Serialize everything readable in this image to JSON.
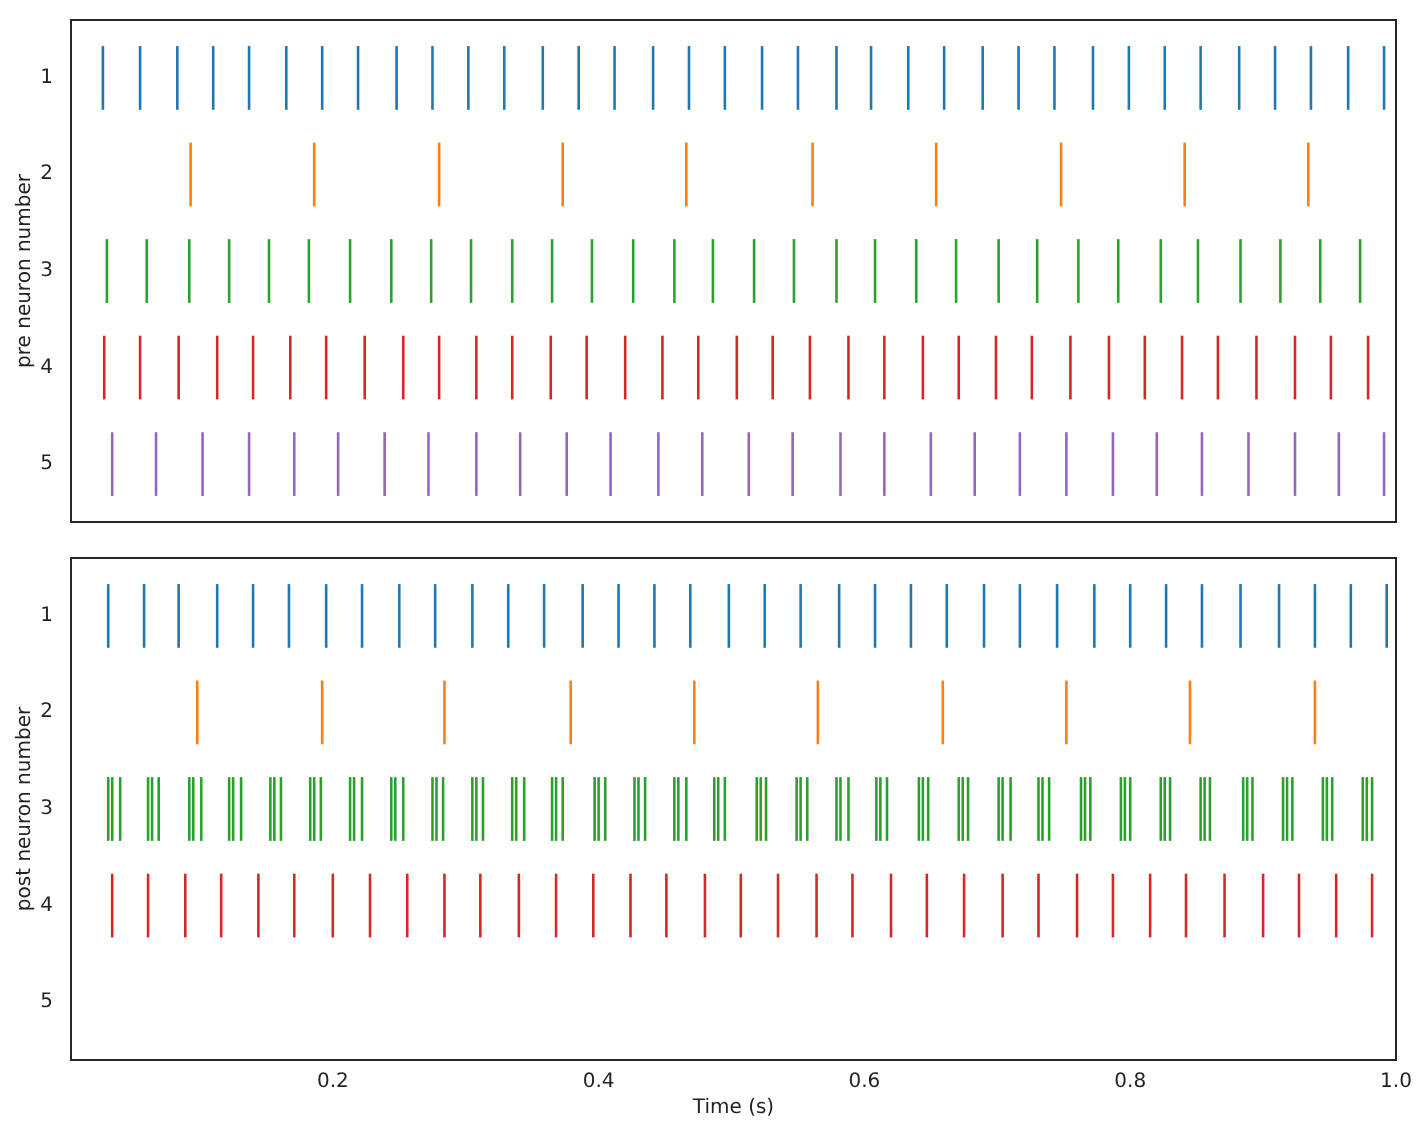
{
  "chart_data": [
    {
      "type": "bar",
      "ylabel": "pre neuron number",
      "xlim": [
        0.003,
        1.0
      ],
      "ylim": [
        5.6,
        0.4
      ],
      "yticks": [
        1,
        2,
        3,
        4,
        5
      ],
      "tick_labels": "y",
      "series": [
        {
          "color": "#1f77b4",
          "x": [
            0.027,
            0.055,
            0.083,
            0.11,
            0.137,
            0.165,
            0.192,
            0.219,
            0.248,
            0.275,
            0.302,
            0.329,
            0.358,
            0.385,
            0.412,
            0.441,
            0.468,
            0.495,
            0.523,
            0.55,
            0.579,
            0.605,
            0.633,
            0.66,
            0.689,
            0.716,
            0.743,
            0.772,
            0.799,
            0.826,
            0.853,
            0.882,
            0.909,
            0.936,
            0.964,
            0.991
          ],
          "base": [
            0.67,
            0.67,
            0.67,
            0.67,
            0.67,
            0.67,
            0.67,
            0.67,
            0.67,
            0.67,
            0.67,
            0.67,
            0.67,
            0.67,
            0.67,
            0.67,
            0.67,
            0.67,
            0.67,
            0.67,
            0.67,
            0.67,
            0.67,
            0.67,
            0.67,
            0.67,
            0.67,
            0.67,
            0.67,
            0.67,
            0.67,
            0.67,
            0.67,
            0.67,
            0.67,
            0.67
          ],
          "values": [
            0.66,
            0.66,
            0.66,
            0.66,
            0.66,
            0.66,
            0.66,
            0.66,
            0.66,
            0.66,
            0.66,
            0.66,
            0.66,
            0.66,
            0.66,
            0.66,
            0.66,
            0.66,
            0.66,
            0.66,
            0.66,
            0.66,
            0.66,
            0.66,
            0.66,
            0.66,
            0.66,
            0.66,
            0.66,
            0.66,
            0.66,
            0.66,
            0.66,
            0.66,
            0.66,
            0.66
          ]
        },
        {
          "color": "#ff7f0e",
          "x": [
            0.093,
            0.186,
            0.28,
            0.373,
            0.466,
            0.561,
            0.654,
            0.748,
            0.841,
            0.934
          ],
          "base": [
            1.67,
            1.67,
            1.67,
            1.67,
            1.67,
            1.67,
            1.67,
            1.67,
            1.67,
            1.67
          ],
          "values": [
            0.66,
            0.66,
            0.66,
            0.66,
            0.66,
            0.66,
            0.66,
            0.66,
            0.66,
            0.66
          ]
        },
        {
          "color": "#2ca02c",
          "x": [
            0.03,
            0.06,
            0.092,
            0.122,
            0.152,
            0.182,
            0.213,
            0.244,
            0.274,
            0.304,
            0.335,
            0.365,
            0.395,
            0.426,
            0.457,
            0.486,
            0.517,
            0.547,
            0.579,
            0.608,
            0.639,
            0.669,
            0.701,
            0.73,
            0.761,
            0.791,
            0.823,
            0.851,
            0.883,
            0.913,
            0.943,
            0.973
          ],
          "base": [
            2.67,
            2.67,
            2.67,
            2.67,
            2.67,
            2.67,
            2.67,
            2.67,
            2.67,
            2.67,
            2.67,
            2.67,
            2.67,
            2.67,
            2.67,
            2.67,
            2.67,
            2.67,
            2.67,
            2.67,
            2.67,
            2.67,
            2.67,
            2.67,
            2.67,
            2.67,
            2.67,
            2.67,
            2.67,
            2.67,
            2.67,
            2.67
          ],
          "values": [
            0.66,
            0.66,
            0.66,
            0.66,
            0.66,
            0.66,
            0.66,
            0.66,
            0.66,
            0.66,
            0.66,
            0.66,
            0.66,
            0.66,
            0.66,
            0.66,
            0.66,
            0.66,
            0.66,
            0.66,
            0.66,
            0.66,
            0.66,
            0.66,
            0.66,
            0.66,
            0.66,
            0.66,
            0.66,
            0.66,
            0.66,
            0.66
          ]
        },
        {
          "color": "#d62728",
          "x": [
            0.028,
            0.055,
            0.084,
            0.113,
            0.14,
            0.168,
            0.195,
            0.224,
            0.253,
            0.28,
            0.308,
            0.335,
            0.364,
            0.391,
            0.42,
            0.448,
            0.475,
            0.504,
            0.531,
            0.559,
            0.588,
            0.615,
            0.644,
            0.671,
            0.699,
            0.726,
            0.755,
            0.784,
            0.811,
            0.839,
            0.866,
            0.895,
            0.924,
            0.951,
            0.979
          ],
          "base": [
            3.67,
            3.67,
            3.67,
            3.67,
            3.67,
            3.67,
            3.67,
            3.67,
            3.67,
            3.67,
            3.67,
            3.67,
            3.67,
            3.67,
            3.67,
            3.67,
            3.67,
            3.67,
            3.67,
            3.67,
            3.67,
            3.67,
            3.67,
            3.67,
            3.67,
            3.67,
            3.67,
            3.67,
            3.67,
            3.67,
            3.67,
            3.67,
            3.67,
            3.67,
            3.67
          ],
          "values": [
            0.66,
            0.66,
            0.66,
            0.66,
            0.66,
            0.66,
            0.66,
            0.66,
            0.66,
            0.66,
            0.66,
            0.66,
            0.66,
            0.66,
            0.66,
            0.66,
            0.66,
            0.66,
            0.66,
            0.66,
            0.66,
            0.66,
            0.66,
            0.66,
            0.66,
            0.66,
            0.66,
            0.66,
            0.66,
            0.66,
            0.66,
            0.66,
            0.66,
            0.66,
            0.66
          ]
        },
        {
          "color": "#9467bd",
          "x": [
            0.034,
            0.067,
            0.102,
            0.137,
            0.171,
            0.204,
            0.239,
            0.272,
            0.308,
            0.341,
            0.376,
            0.409,
            0.445,
            0.478,
            0.513,
            0.546,
            0.582,
            0.615,
            0.65,
            0.683,
            0.717,
            0.752,
            0.787,
            0.82,
            0.854,
            0.889,
            0.924,
            0.957,
            0.991
          ],
          "base": [
            4.67,
            4.67,
            4.67,
            4.67,
            4.67,
            4.67,
            4.67,
            4.67,
            4.67,
            4.67,
            4.67,
            4.67,
            4.67,
            4.67,
            4.67,
            4.67,
            4.67,
            4.67,
            4.67,
            4.67,
            4.67,
            4.67,
            4.67,
            4.67,
            4.67,
            4.67,
            4.67,
            4.67,
            4.67
          ],
          "values": [
            0.66,
            0.66,
            0.66,
            0.66,
            0.66,
            0.66,
            0.66,
            0.66,
            0.66,
            0.66,
            0.66,
            0.66,
            0.66,
            0.66,
            0.66,
            0.66,
            0.66,
            0.66,
            0.66,
            0.66,
            0.66,
            0.66,
            0.66,
            0.66,
            0.66,
            0.66,
            0.66,
            0.66,
            0.66
          ]
        }
      ]
    },
    {
      "type": "bar",
      "xlabel": "Time (s)",
      "ylabel": "post neuron number",
      "xlim": [
        0.003,
        1.0
      ],
      "xticks": [
        0.2,
        0.4,
        0.6,
        0.8,
        {
          "value": 1,
          "label": "1.0"
        }
      ],
      "ylim": [
        5.6,
        0.4
      ],
      "yticks": [
        1,
        2,
        3,
        4,
        5
      ],
      "series": [
        {
          "color": "#1f77b4",
          "x": [
            0.031,
            0.058,
            0.084,
            0.113,
            0.14,
            0.167,
            0.195,
            0.222,
            0.25,
            0.277,
            0.305,
            0.332,
            0.359,
            0.388,
            0.415,
            0.442,
            0.469,
            0.498,
            0.525,
            0.552,
            0.581,
            0.608,
            0.635,
            0.662,
            0.69,
            0.717,
            0.745,
            0.773,
            0.8,
            0.827,
            0.854,
            0.883,
            0.912,
            0.939,
            0.966,
            0.993
          ],
          "base": [
            0.67,
            0.67,
            0.67,
            0.67,
            0.67,
            0.67,
            0.67,
            0.67,
            0.67,
            0.67,
            0.67,
            0.67,
            0.67,
            0.67,
            0.67,
            0.67,
            0.67,
            0.67,
            0.67,
            0.67,
            0.67,
            0.67,
            0.67,
            0.67,
            0.67,
            0.67,
            0.67,
            0.67,
            0.67,
            0.67,
            0.67,
            0.67,
            0.67,
            0.67,
            0.67,
            0.67
          ],
          "values": [
            0.66,
            0.66,
            0.66,
            0.66,
            0.66,
            0.66,
            0.66,
            0.66,
            0.66,
            0.66,
            0.66,
            0.66,
            0.66,
            0.66,
            0.66,
            0.66,
            0.66,
            0.66,
            0.66,
            0.66,
            0.66,
            0.66,
            0.66,
            0.66,
            0.66,
            0.66,
            0.66,
            0.66,
            0.66,
            0.66,
            0.66,
            0.66,
            0.66,
            0.66,
            0.66,
            0.66
          ]
        },
        {
          "color": "#ff7f0e",
          "x": [
            0.098,
            0.192,
            0.284,
            0.379,
            0.472,
            0.565,
            0.659,
            0.752,
            0.845,
            0.939
          ],
          "base": [
            1.67,
            1.67,
            1.67,
            1.67,
            1.67,
            1.67,
            1.67,
            1.67,
            1.67,
            1.67
          ],
          "values": [
            0.66,
            0.66,
            0.66,
            0.66,
            0.66,
            0.66,
            0.66,
            0.66,
            0.66,
            0.66
          ]
        },
        {
          "color": "#2ca02c",
          "x": [
            0.031,
            0.034,
            0.04,
            0.061,
            0.064,
            0.069,
            0.092,
            0.095,
            0.101,
            0.122,
            0.125,
            0.131,
            0.153,
            0.156,
            0.161,
            0.183,
            0.186,
            0.191,
            0.213,
            0.216,
            0.222,
            0.244,
            0.247,
            0.253,
            0.275,
            0.278,
            0.283,
            0.305,
            0.308,
            0.313,
            0.335,
            0.338,
            0.344,
            0.365,
            0.368,
            0.373,
            0.397,
            0.4,
            0.405,
            0.427,
            0.43,
            0.435,
            0.457,
            0.46,
            0.466,
            0.487,
            0.49,
            0.495,
            0.519,
            0.522,
            0.526,
            0.549,
            0.552,
            0.557,
            0.579,
            0.582,
            0.588,
            0.609,
            0.612,
            0.617,
            0.641,
            0.644,
            0.648,
            0.671,
            0.674,
            0.678,
            0.701,
            0.704,
            0.71,
            0.731,
            0.734,
            0.739,
            0.763,
            0.766,
            0.77,
            0.793,
            0.796,
            0.8,
            0.823,
            0.826,
            0.83,
            0.853,
            0.856,
            0.86,
            0.885,
            0.888,
            0.892,
            0.915,
            0.918,
            0.922,
            0.945,
            0.948,
            0.952,
            0.975,
            0.978,
            0.982
          ],
          "base": [
            2.67,
            2.67,
            2.67,
            2.67,
            2.67,
            2.67,
            2.67,
            2.67,
            2.67,
            2.67,
            2.67,
            2.67,
            2.67,
            2.67,
            2.67,
            2.67,
            2.67,
            2.67,
            2.67,
            2.67,
            2.67,
            2.67,
            2.67,
            2.67,
            2.67,
            2.67,
            2.67,
            2.67,
            2.67,
            2.67,
            2.67,
            2.67,
            2.67,
            2.67,
            2.67,
            2.67,
            2.67,
            2.67,
            2.67,
            2.67,
            2.67,
            2.67,
            2.67,
            2.67,
            2.67,
            2.67,
            2.67,
            2.67,
            2.67,
            2.67,
            2.67,
            2.67,
            2.67,
            2.67,
            2.67,
            2.67,
            2.67,
            2.67,
            2.67,
            2.67,
            2.67,
            2.67,
            2.67,
            2.67,
            2.67,
            2.67,
            2.67,
            2.67,
            2.67,
            2.67,
            2.67,
            2.67,
            2.67,
            2.67,
            2.67,
            2.67,
            2.67,
            2.67,
            2.67,
            2.67,
            2.67,
            2.67,
            2.67,
            2.67,
            2.67,
            2.67,
            2.67,
            2.67,
            2.67,
            2.67,
            2.67,
            2.67,
            2.67,
            2.67,
            2.67,
            2.67
          ],
          "values": [
            0.66,
            0.66,
            0.66,
            0.66,
            0.66,
            0.66,
            0.66,
            0.66,
            0.66,
            0.66,
            0.66,
            0.66,
            0.66,
            0.66,
            0.66,
            0.66,
            0.66,
            0.66,
            0.66,
            0.66,
            0.66,
            0.66,
            0.66,
            0.66,
            0.66,
            0.66,
            0.66,
            0.66,
            0.66,
            0.66,
            0.66,
            0.66,
            0.66,
            0.66,
            0.66,
            0.66,
            0.66,
            0.66,
            0.66,
            0.66,
            0.66,
            0.66,
            0.66,
            0.66,
            0.66,
            0.66,
            0.66,
            0.66,
            0.66,
            0.66,
            0.66,
            0.66,
            0.66,
            0.66,
            0.66,
            0.66,
            0.66,
            0.66,
            0.66,
            0.66,
            0.66,
            0.66,
            0.66,
            0.66,
            0.66,
            0.66,
            0.66,
            0.66,
            0.66,
            0.66,
            0.66,
            0.66,
            0.66,
            0.66,
            0.66,
            0.66,
            0.66,
            0.66,
            0.66,
            0.66,
            0.66,
            0.66,
            0.66,
            0.66,
            0.66,
            0.66,
            0.66,
            0.66,
            0.66,
            0.66,
            0.66,
            0.66,
            0.66,
            0.66,
            0.66,
            0.66
          ]
        },
        {
          "color": "#d62728",
          "x": [
            0.034,
            0.061,
            0.089,
            0.116,
            0.144,
            0.171,
            0.2,
            0.228,
            0.256,
            0.284,
            0.311,
            0.34,
            0.368,
            0.396,
            0.424,
            0.451,
            0.48,
            0.507,
            0.535,
            0.564,
            0.591,
            0.62,
            0.647,
            0.675,
            0.704,
            0.731,
            0.76,
            0.787,
            0.815,
            0.842,
            0.871,
            0.9,
            0.927,
            0.955,
            0.982
          ],
          "base": [
            3.67,
            3.67,
            3.67,
            3.67,
            3.67,
            3.67,
            3.67,
            3.67,
            3.67,
            3.67,
            3.67,
            3.67,
            3.67,
            3.67,
            3.67,
            3.67,
            3.67,
            3.67,
            3.67,
            3.67,
            3.67,
            3.67,
            3.67,
            3.67,
            3.67,
            3.67,
            3.67,
            3.67,
            3.67,
            3.67,
            3.67,
            3.67,
            3.67,
            3.67,
            3.67
          ],
          "values": [
            0.66,
            0.66,
            0.66,
            0.66,
            0.66,
            0.66,
            0.66,
            0.66,
            0.66,
            0.66,
            0.66,
            0.66,
            0.66,
            0.66,
            0.66,
            0.66,
            0.66,
            0.66,
            0.66,
            0.66,
            0.66,
            0.66,
            0.66,
            0.66,
            0.66,
            0.66,
            0.66,
            0.66,
            0.66,
            0.66,
            0.66,
            0.66,
            0.66,
            0.66,
            0.66
          ]
        }
      ]
    }
  ]
}
